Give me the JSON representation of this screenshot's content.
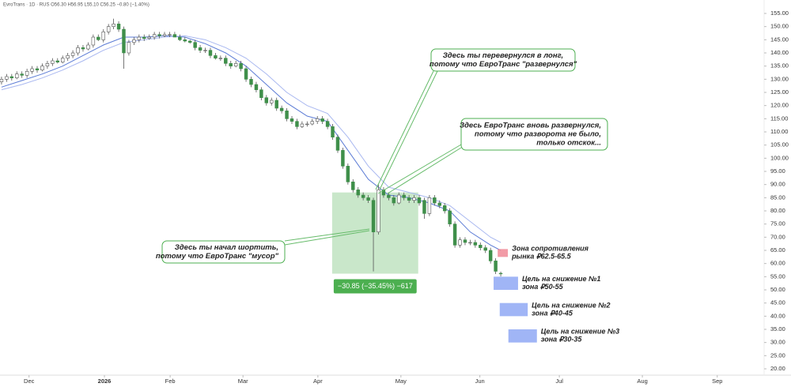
{
  "chart_data": {
    "type": "candlestick",
    "header": "EvroTrans · 1D · RUS  O56.30 H56.95 L55.10 C56.25 −0.80 (−1.40%)",
    "up_color": "#ffffff",
    "down_color": "#3f8f4a",
    "wick_color": "#555555",
    "x": [
      0,
      1,
      2,
      3,
      4,
      5,
      6,
      7,
      8,
      9,
      10,
      11,
      12,
      13,
      14,
      15,
      16,
      17,
      18,
      19,
      20,
      21,
      22,
      23,
      24,
      25,
      26,
      27,
      28,
      29,
      30,
      31,
      32,
      33,
      34,
      35,
      36,
      37,
      38,
      39,
      40,
      41,
      42,
      43,
      44,
      45,
      46,
      47,
      48,
      49,
      50,
      51,
      52,
      53,
      54,
      55,
      56,
      57,
      58,
      59,
      60,
      61,
      62,
      63,
      64,
      65,
      66,
      67,
      68,
      69,
      70,
      71,
      72,
      73,
      74,
      75,
      76,
      77,
      78,
      79,
      80,
      81,
      82,
      83,
      84,
      85,
      86,
      87,
      88,
      89,
      90,
      91,
      92,
      93,
      94,
      95,
      96,
      97,
      98
    ],
    "open": [
      129,
      130,
      131,
      130.5,
      132,
      131.5,
      133,
      134,
      133.5,
      135,
      136,
      137,
      136.5,
      138,
      139,
      140,
      142,
      141.5,
      143,
      146,
      145,
      148,
      150,
      151,
      149,
      140,
      144,
      145,
      146,
      145.5,
      146,
      147,
      146.5,
      147,
      147,
      146,
      145,
      144.5,
      144,
      142,
      141,
      141,
      139,
      138,
      138,
      136,
      135,
      136,
      134,
      130,
      128,
      126,
      123,
      121,
      122,
      119,
      118,
      115,
      114,
      112,
      113,
      113,
      114,
      115,
      114,
      112,
      108,
      103,
      97,
      91,
      88,
      86,
      85,
      84,
      72,
      88,
      86,
      85,
      83,
      86,
      85,
      84,
      85,
      84,
      79,
      85,
      83,
      82,
      80,
      75,
      67,
      69,
      68,
      68,
      67,
      66,
      65,
      61,
      56.3
    ],
    "high": [
      131,
      132,
      132,
      133,
      133,
      134,
      135,
      135,
      136,
      137,
      138,
      138,
      139,
      140,
      141,
      143,
      143,
      144,
      147,
      147,
      149,
      151,
      153,
      152,
      150,
      145,
      146,
      147,
      147,
      147,
      148,
      148,
      148,
      148,
      148,
      147,
      146,
      145,
      145,
      143,
      142,
      142,
      140,
      139,
      139,
      137,
      137,
      137,
      135,
      131,
      129,
      127,
      124,
      123,
      123,
      120,
      119,
      116,
      115,
      114,
      114,
      115,
      116,
      116,
      115,
      113,
      109,
      104,
      98,
      92,
      89,
      87,
      86,
      85,
      90,
      89,
      87,
      86,
      87,
      87,
      86,
      86,
      86,
      85,
      86,
      86,
      84,
      83,
      81,
      76,
      70,
      70,
      69,
      69,
      68,
      67,
      66,
      62,
      56.95
    ],
    "low": [
      128,
      129,
      129.5,
      130,
      130.5,
      130.5,
      132,
      132.5,
      133,
      134,
      135,
      136,
      136,
      137,
      138,
      139,
      140.5,
      141,
      142,
      144.5,
      144,
      147,
      149,
      148,
      134,
      139,
      143,
      144,
      144.5,
      145,
      145,
      145.5,
      146,
      146,
      146,
      144.5,
      144,
      143.5,
      141,
      140,
      140,
      138,
      137.5,
      137,
      135,
      134,
      134.5,
      133,
      129,
      127,
      125,
      122,
      120,
      120,
      118,
      117,
      114,
      113,
      111,
      111.5,
      112,
      112.5,
      113,
      113,
      111,
      107,
      102,
      96,
      90,
      87,
      85,
      84,
      83,
      57,
      71,
      85,
      84,
      82,
      82.5,
      84,
      83,
      83,
      82,
      77,
      78,
      82,
      81,
      79,
      74,
      66,
      66,
      67,
      67,
      66,
      65,
      64,
      60,
      56,
      55.1
    ],
    "close": [
      130,
      131,
      130.5,
      132,
      131.5,
      133,
      134,
      133.5,
      135,
      136,
      137,
      136.5,
      138,
      139,
      140,
      142,
      141.5,
      143,
      146,
      145,
      148,
      150,
      151,
      149,
      140,
      144,
      145,
      146,
      145.5,
      146,
      147,
      146.5,
      147,
      147,
      146,
      145,
      144.5,
      144,
      142,
      141,
      141,
      139,
      138,
      138,
      136,
      135,
      136,
      134,
      130,
      128,
      126,
      123,
      121,
      122,
      119,
      118,
      115,
      114,
      112,
      113,
      113,
      114,
      115,
      114,
      112,
      108,
      103,
      97,
      91,
      88,
      86,
      85,
      84,
      72,
      88,
      86,
      85,
      83,
      86,
      85,
      84,
      85,
      83,
      79,
      85,
      83,
      82,
      80,
      75,
      67,
      69,
      68,
      68,
      67,
      66,
      65,
      61,
      57.05,
      56.25
    ],
    "series": [
      {
        "color": "#5b7bd5",
        "x": [
          0,
          4,
          8,
          12,
          16,
          20,
          24,
          28,
          32,
          36,
          40,
          44,
          48,
          52,
          56,
          60,
          64,
          68,
          72,
          76,
          80,
          84,
          88,
          92,
          96,
          98
        ],
        "values": [
          127,
          129.5,
          132,
          135,
          139,
          143,
          146,
          146,
          146.5,
          146,
          143.5,
          140,
          135,
          128,
          121,
          116,
          114,
          103,
          92,
          86,
          85,
          83,
          80,
          72,
          67,
          65
        ]
      },
      {
        "color": "#a9b8f0",
        "x": [
          0,
          4,
          8,
          12,
          16,
          20,
          24,
          28,
          32,
          36,
          40,
          44,
          48,
          52,
          56,
          60,
          64,
          68,
          72,
          76,
          80,
          84,
          88,
          92,
          96,
          98
        ],
        "values": [
          126,
          128,
          130.5,
          133.5,
          137,
          141,
          144,
          145,
          146,
          146.5,
          145,
          142,
          138,
          132,
          125,
          120,
          117,
          108,
          97,
          89,
          87,
          85,
          82,
          76,
          70,
          68
        ]
      }
    ],
    "xlim": [
      -0.3,
      149.7
    ],
    "xticks": [
      {
        "value": 5.4,
        "label": "Dec"
      },
      {
        "value": 20.2,
        "label": "2026"
      },
      {
        "value": 33.1,
        "label": "Feb"
      },
      {
        "value": 47.4,
        "label": "Mar"
      },
      {
        "value": 62.1,
        "label": "Apr"
      },
      {
        "value": 78.4,
        "label": "May"
      },
      {
        "value": 93.9,
        "label": "Jun"
      },
      {
        "value": 109.5,
        "label": "Jul"
      },
      {
        "value": 125.8,
        "label": "Aug"
      },
      {
        "value": 140.5,
        "label": "Sep"
      }
    ],
    "ylim": [
      17.6,
      160.1
    ],
    "yticks": [
      {
        "value": 155,
        "label": "155.00"
      },
      {
        "value": 150,
        "label": "150.00"
      },
      {
        "value": 145,
        "label": "145.00"
      },
      {
        "value": 140,
        "label": "140.00"
      },
      {
        "value": 135,
        "label": "135.00"
      },
      {
        "value": 130,
        "label": "130.00"
      },
      {
        "value": 125,
        "label": "125.00"
      },
      {
        "value": 120,
        "label": "120.00"
      },
      {
        "value": 115,
        "label": "115.00"
      },
      {
        "value": 110,
        "label": "110.00"
      },
      {
        "value": 105,
        "label": "105.00"
      },
      {
        "value": 100,
        "label": "100.00"
      },
      {
        "value": 95,
        "label": "95.00"
      },
      {
        "value": 90,
        "label": "90.00"
      },
      {
        "value": 85,
        "label": "85.00"
      },
      {
        "value": 80,
        "label": "80.00"
      },
      {
        "value": 75,
        "label": "75.00"
      },
      {
        "value": 70,
        "label": "70.00"
      },
      {
        "value": 65,
        "label": "65.00"
      },
      {
        "value": 60,
        "label": "60.00"
      },
      {
        "value": 55,
        "label": "55.00"
      },
      {
        "value": 50,
        "label": "50.00"
      },
      {
        "value": 45,
        "label": "45.00"
      },
      {
        "value": 40,
        "label": "40.00"
      },
      {
        "value": 35,
        "label": "35.00"
      },
      {
        "value": 30,
        "label": "30.00"
      },
      {
        "value": 25,
        "label": "25.00"
      },
      {
        "value": 20,
        "label": "20.00"
      }
    ],
    "measure": {
      "x": [
        64.9,
        81.8
      ],
      "top": 87,
      "bottom": 56.15,
      "label": "−30.85 (−35.45%) −617"
    },
    "zones": [
      {
        "color": "#f08a96",
        "x": [
          97.4,
          99.4
        ],
        "low": 62.5,
        "high": 65.5,
        "lines": [
          "Зона сопротивления",
          "рынка ₽62.5-65.5"
        ]
      },
      {
        "color": "#8fa8f5",
        "x": [
          96.6,
          101.4
        ],
        "low": 50,
        "high": 55,
        "lines": [
          "Цель на снижение №1",
          "зона ₽50-55"
        ]
      },
      {
        "color": "#8fa8f5",
        "x": [
          97.8,
          103.3
        ],
        "low": 40,
        "high": 45,
        "lines": [
          "Цель на снижение №2",
          "зона ₽40-45"
        ]
      },
      {
        "color": "#8fa8f5",
        "x": [
          99.5,
          105.1
        ],
        "low": 30,
        "high": 35,
        "lines": [
          "Цель на снижение №3",
          "зона ₽30-35"
        ]
      }
    ],
    "callouts": [
      {
        "lines": [
          "Здесь ты перевернулся в лонг,",
          "потому что ЕвроТранс \"развернулся\""
        ]
      },
      {
        "lines": [
          "Здесь ЕвроТранс вновь развернулся,",
          "потому что разворота не было,",
          "только отскок..."
        ]
      },
      {
        "lines": [
          "Здесь ты начал шортить,",
          "потому что ЕвроТранс \"мусор\""
        ]
      }
    ]
  }
}
